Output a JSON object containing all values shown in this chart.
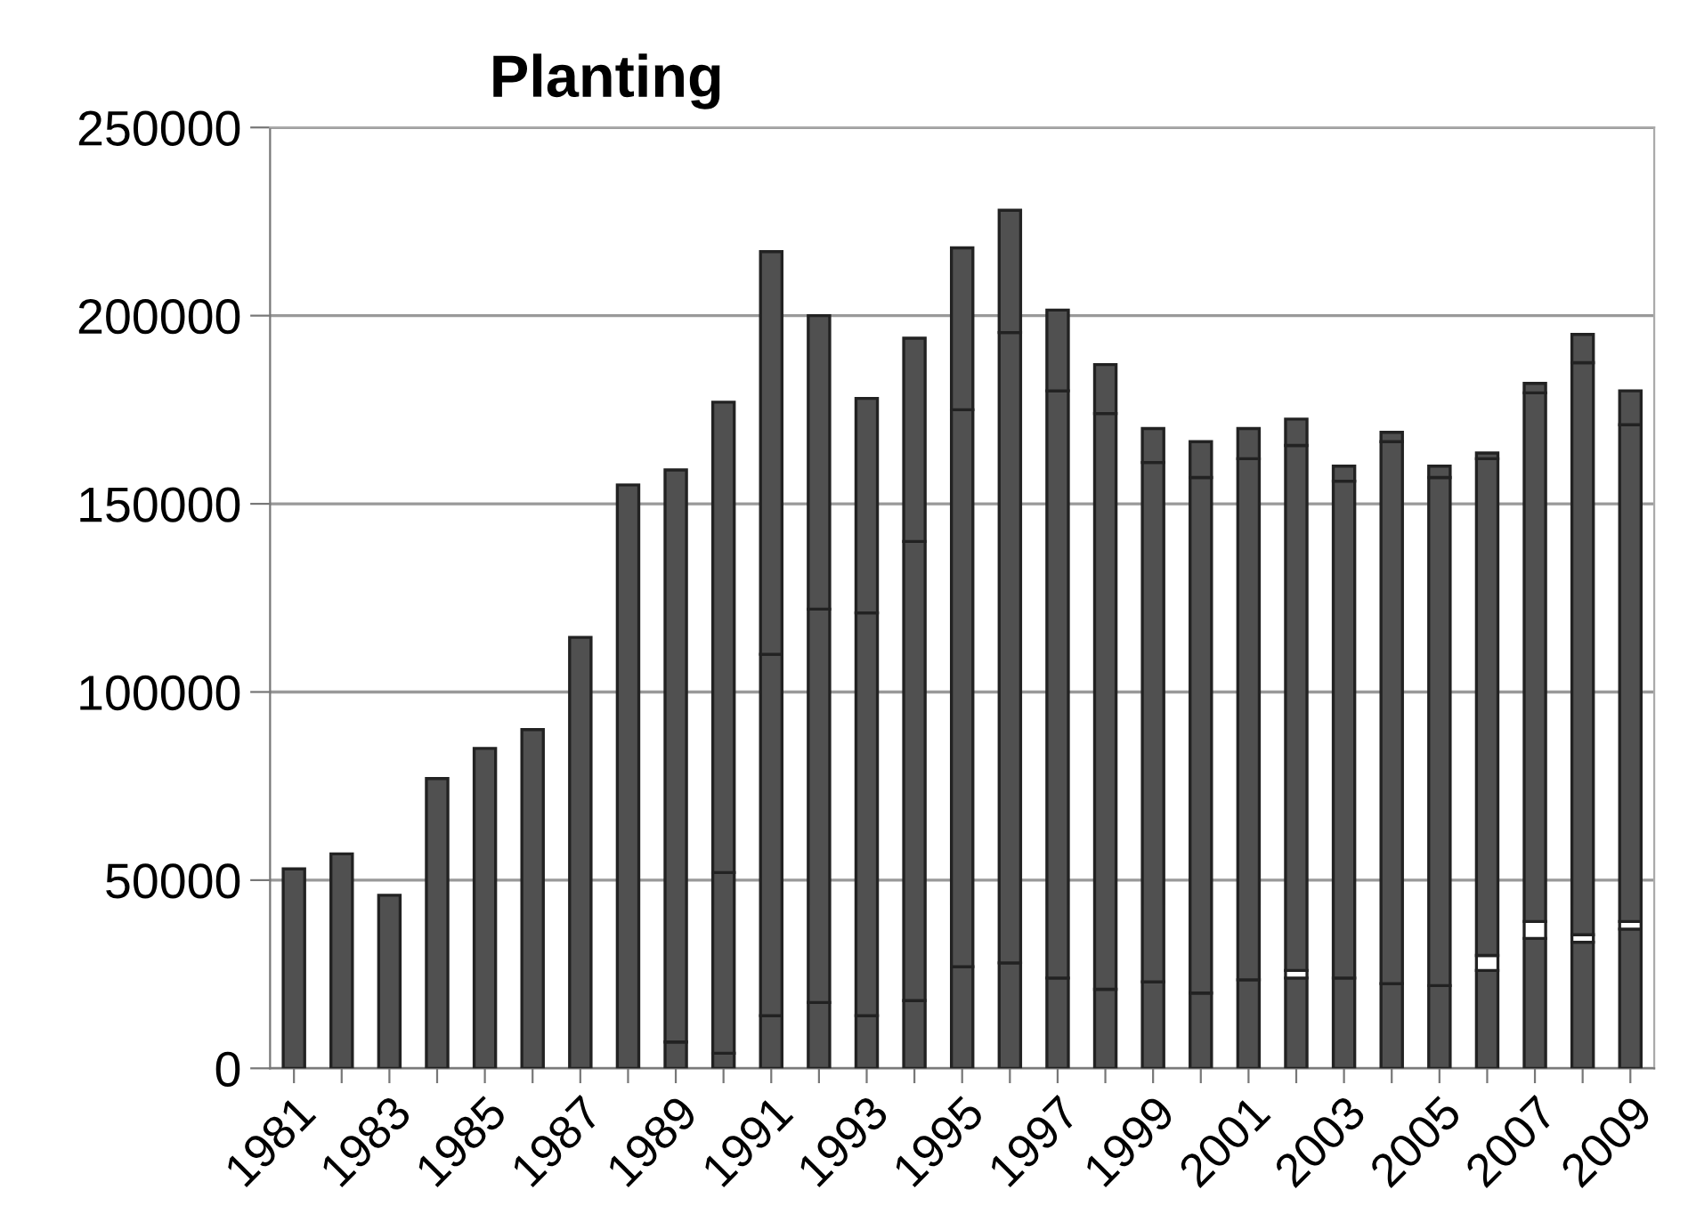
{
  "chart_data": {
    "type": "bar",
    "title": "Planting",
    "stacked": true,
    "categories": [
      "1981",
      null,
      "1983",
      null,
      "1985",
      null,
      "1987",
      null,
      "1989",
      null,
      "1991",
      null,
      "1993",
      null,
      "1995",
      null,
      "1997",
      null,
      "1999",
      null,
      "2001",
      null,
      "2003",
      null,
      "2005",
      null,
      "2007",
      null,
      "2009"
    ],
    "series": [
      {
        "color": "#505050",
        "values": [
          0,
          0,
          0,
          0,
          0,
          0,
          null,
          null,
          7000,
          4000,
          14000,
          17500,
          14000,
          18000,
          27000,
          28000,
          24000,
          21000,
          23000,
          20000,
          23500,
          24000,
          24000,
          22500,
          22000,
          26000,
          34500,
          33500,
          37000
        ]
      },
      {
        "color": "#ffffff",
        "values": [
          0,
          0,
          0,
          0,
          0,
          0,
          0,
          0,
          0,
          0,
          0,
          0,
          0,
          0,
          0,
          0,
          0,
          0,
          0,
          0,
          0,
          2000,
          0,
          0,
          0,
          4000,
          4500,
          2000,
          2000
        ]
      },
      {
        "color": "#505050",
        "values": [
          53000,
          57000,
          46000,
          77000,
          85000,
          90000,
          114500,
          155000,
          152000,
          48000,
          96000,
          104500,
          107000,
          122000,
          148000,
          167500,
          156000,
          153000,
          138000,
          137000,
          138500,
          139500,
          132000,
          144000,
          135000,
          132000,
          140500,
          152000,
          132000
        ]
      },
      {
        "color": "#505050",
        "values": [
          0,
          0,
          0,
          0,
          0,
          0,
          0,
          0,
          0,
          125000,
          107000,
          78000,
          57000,
          54000,
          43000,
          32500,
          21500,
          13000,
          9000,
          9500,
          8000,
          7000,
          4000,
          2500,
          3000,
          1500,
          2500,
          7500,
          9000
        ]
      }
    ],
    "ylim": [
      0,
      250000
    ],
    "yticks": [
      0,
      50000,
      100000,
      150000,
      200000,
      250000
    ],
    "grid": "y"
  }
}
